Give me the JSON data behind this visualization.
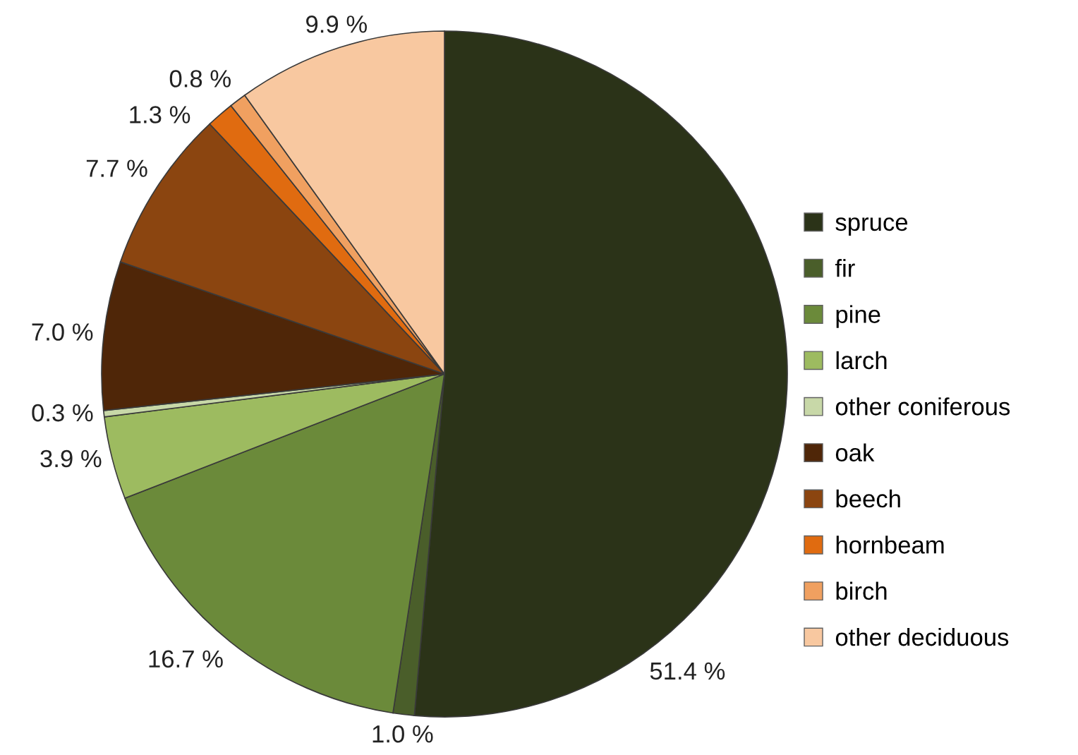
{
  "chart_data": {
    "type": "pie",
    "categories": [
      "spruce",
      "fir",
      "pine",
      "larch",
      "other coniferous",
      "oak",
      "beech",
      "hornbeam",
      "birch",
      "other deciduous"
    ],
    "values": [
      51.4,
      1.0,
      16.7,
      3.9,
      0.3,
      7.0,
      7.7,
      1.3,
      0.8,
      9.9
    ],
    "colors": [
      "#2b3318",
      "#4a5e2a",
      "#6b8a3a",
      "#9dbb60",
      "#c8d8a8",
      "#4f2608",
      "#8b4510",
      "#e06b10",
      "#f0a060",
      "#f8c8a0"
    ],
    "value_labels": [
      "51.4 %",
      "1.0 %",
      "16.7 %",
      "3.9 %",
      "0.3 %",
      "7.0 %",
      "7.7 %",
      "1.3 %",
      "0.8 %",
      "9.9 %"
    ],
    "legend": "right"
  }
}
